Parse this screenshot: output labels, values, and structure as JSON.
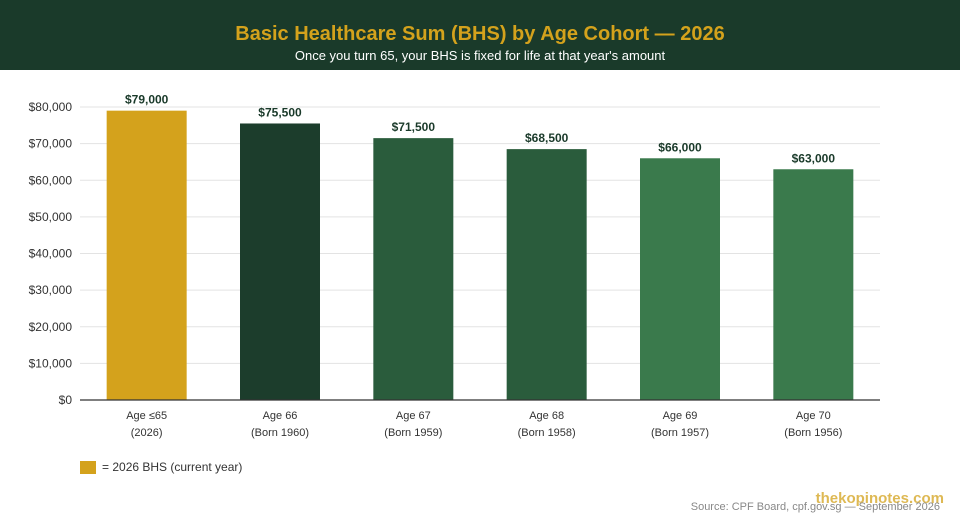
{
  "header": {
    "title": "Basic Healthcare Sum (BHS) by Age Cohort — 2026",
    "subtitle": "Once you turn 65, your BHS is fixed for life at that year's amount"
  },
  "chart_data": {
    "type": "bar",
    "title": "Basic Healthcare Sum (BHS) by Age Cohort — 2026",
    "subtitle": "Once you turn 65, your BHS is fixed for life at that year's amount",
    "categories": [
      [
        "Age ≤65",
        "(2026)"
      ],
      [
        "Age 66",
        "(Born 1960)"
      ],
      [
        "Age 67",
        "(Born 1959)"
      ],
      [
        "Age 68",
        "(Born 1958)"
      ],
      [
        "Age 69",
        "(Born 1957)"
      ],
      [
        "Age 70",
        "(Born 1956)"
      ]
    ],
    "values": [
      79000,
      75500,
      71500,
      68500,
      66000,
      63000
    ],
    "value_labels": [
      "$79,000",
      "$75,500",
      "$71,500",
      "$68,500",
      "$66,000",
      "$63,000"
    ],
    "bar_colors": [
      "#d4a21c",
      "#1c3d2c",
      "#2a5c3c",
      "#2a5c3c",
      "#3a7a4c",
      "#3a7a4c"
    ],
    "ylim": [
      0,
      80000
    ],
    "yticks": [
      0,
      10000,
      20000,
      30000,
      40000,
      50000,
      60000,
      70000,
      80000
    ],
    "ytick_labels": [
      "$0",
      "$10,000",
      "$20,000",
      "$30,000",
      "$40,000",
      "$50,000",
      "$60,000",
      "$70,000",
      "$80,000"
    ],
    "xlabel": "",
    "ylabel": "",
    "grid": true,
    "legend": {
      "placement": "bottom-left",
      "label": "= 2026 BHS (current year)",
      "color": "#d4a21c"
    }
  },
  "footer": {
    "watermark": "thekopinotes.com",
    "source": "Source: CPF Board, cpf.gov.sg — September 2026"
  },
  "colors": {
    "header_bg": "#1a3a2a",
    "accent": "#d4a21c",
    "value_label": "#1a3a2a"
  }
}
